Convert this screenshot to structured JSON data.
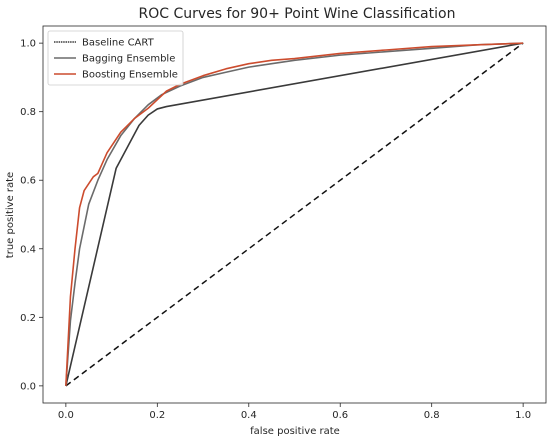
{
  "chart_data": {
    "type": "line",
    "title": "ROC Curves for 90+ Point Wine Classification",
    "xlabel": "false positive rate",
    "ylabel": "true positive rate",
    "xlim": [
      -0.05,
      1.05
    ],
    "ylim": [
      -0.05,
      1.05
    ],
    "xticks": [
      "0.0",
      "0.2",
      "0.4",
      "0.6",
      "0.8",
      "1.0"
    ],
    "yticks": [
      "0.0",
      "0.2",
      "0.4",
      "0.6",
      "0.8",
      "1.0"
    ],
    "grid": false,
    "legend_position": "top-left",
    "series": [
      {
        "name": "Baseline CART",
        "color": "#3a3a3a",
        "style": "dotted-solid",
        "x": [
          0.0,
          0.11,
          0.16,
          0.18,
          0.2,
          0.22,
          1.0
        ],
        "y": [
          0.0,
          0.635,
          0.76,
          0.79,
          0.808,
          0.815,
          1.0
        ]
      },
      {
        "name": "Bagging Ensemble",
        "color": "#6b6b6b",
        "style": "solid",
        "x": [
          0.0,
          0.01,
          0.02,
          0.03,
          0.05,
          0.07,
          0.09,
          0.12,
          0.15,
          0.18,
          0.21,
          0.25,
          0.3,
          0.35,
          0.4,
          0.45,
          0.5,
          0.6,
          0.7,
          0.8,
          0.9,
          1.0
        ],
        "y": [
          0.0,
          0.19,
          0.3,
          0.4,
          0.53,
          0.6,
          0.66,
          0.73,
          0.78,
          0.82,
          0.85,
          0.875,
          0.9,
          0.915,
          0.93,
          0.94,
          0.95,
          0.965,
          0.975,
          0.985,
          0.995,
          1.0
        ]
      },
      {
        "name": "Boosting Ensemble",
        "color": "#cc4c2e",
        "style": "solid",
        "x": [
          0.0,
          0.005,
          0.01,
          0.02,
          0.03,
          0.04,
          0.05,
          0.06,
          0.07,
          0.08,
          0.09,
          0.1,
          0.12,
          0.15,
          0.18,
          0.2,
          0.22,
          0.25,
          0.3,
          0.35,
          0.4,
          0.45,
          0.5,
          0.6,
          0.7,
          0.8,
          0.9,
          1.0
        ],
        "y": [
          0.0,
          0.13,
          0.26,
          0.4,
          0.52,
          0.57,
          0.59,
          0.61,
          0.62,
          0.65,
          0.68,
          0.7,
          0.74,
          0.78,
          0.81,
          0.835,
          0.86,
          0.88,
          0.905,
          0.925,
          0.94,
          0.95,
          0.955,
          0.97,
          0.98,
          0.99,
          0.995,
          1.0
        ]
      }
    ],
    "reference_line": {
      "color": "#111111",
      "style": "dashed",
      "x": [
        0.0,
        1.0
      ],
      "y": [
        0.0,
        1.0
      ]
    }
  }
}
